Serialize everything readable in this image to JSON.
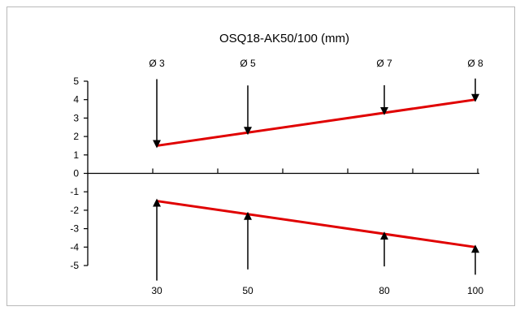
{
  "chart_data": {
    "type": "line",
    "title": "OSQ18-AK50/100 (mm)",
    "xlabel": "",
    "ylabel": "",
    "x_ticks": [
      "30",
      "50",
      "80",
      "100"
    ],
    "ylim": [
      -5,
      5
    ],
    "y_ticks": [
      "5",
      "4",
      "3",
      "2",
      "1",
      "0",
      "-1",
      "-2",
      "-3",
      "-4",
      "-5"
    ],
    "series": [
      {
        "values": [
          {
            "x": 30,
            "y": 1.5
          },
          {
            "x": 100,
            "y": 4
          }
        ],
        "color": "#e00000"
      },
      {
        "values": [
          {
            "x": 30,
            "y": -1.5
          },
          {
            "x": 100,
            "y": -4
          }
        ],
        "color": "#e00000"
      }
    ],
    "diameter_labels": [
      {
        "label": "Ø 3",
        "x": 30
      },
      {
        "label": "Ø 5",
        "x": 50
      },
      {
        "label": "Ø 7",
        "x": 80
      },
      {
        "label": "Ø 8",
        "x": 100
      }
    ],
    "bottom_labels": [
      {
        "label": "30",
        "x": 30
      },
      {
        "label": "50",
        "x": 50
      },
      {
        "label": "80",
        "x": 80
      },
      {
        "label": "100",
        "x": 100
      }
    ],
    "grid": false,
    "legend": "none"
  }
}
